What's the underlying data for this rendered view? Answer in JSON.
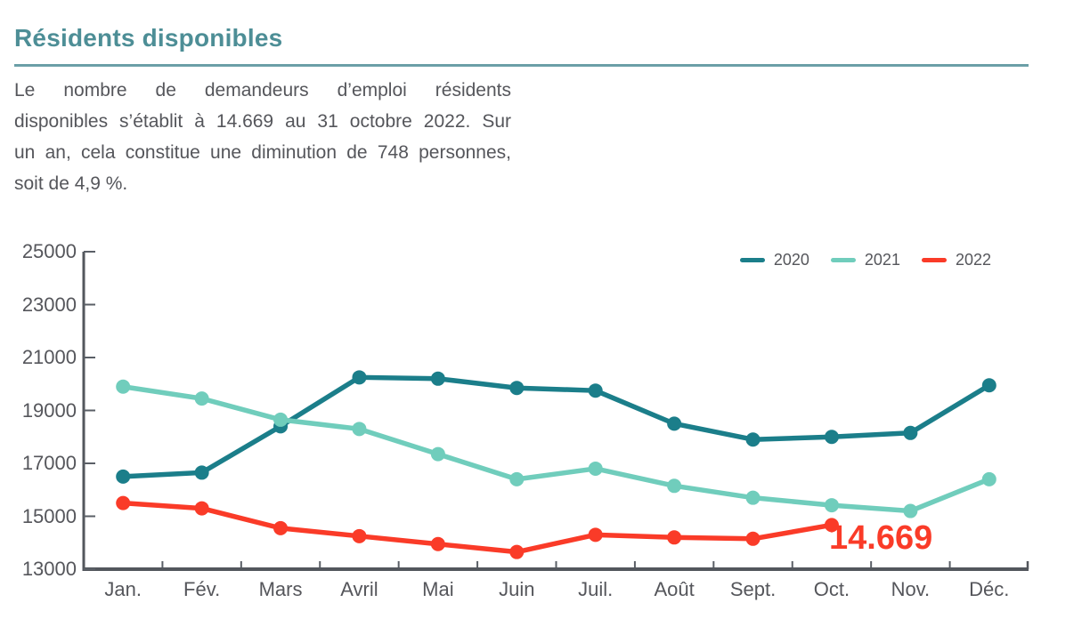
{
  "page": {
    "title": "Résidents disponibles",
    "intro_lines": [
      "Le nombre de demandeurs d’emploi résidents",
      "disponibles s’établit à 14.669 au 31 octobre 2022. Sur",
      "un an, cela constitue une diminution de 748 personnes,",
      "soit de 4,9 %."
    ]
  },
  "colors": {
    "title_teal": "#4D8E96",
    "divider_teal": "#6B9FA7",
    "text_gray": "#55565B",
    "axis_gray": "#53575D",
    "tick_gray": "#5A5F66",
    "series_2020": "#1B7E8A",
    "series_2021": "#70CDBC",
    "series_2022": "#FA3B28"
  },
  "chart_data": {
    "type": "line",
    "title": "",
    "xlabel": "",
    "ylabel": "",
    "categories": [
      "Jan.",
      "Fév.",
      "Mars",
      "Avril",
      "Mai",
      "Juin",
      "Juil.",
      "Août",
      "Sept.",
      "Oct.",
      "Nov.",
      "Déc."
    ],
    "y_ticks": [
      25000,
      23000,
      21000,
      19000,
      17000,
      15000,
      13000
    ],
    "ylim": [
      13000,
      25000
    ],
    "grid": false,
    "legend_position": "top-right",
    "series": [
      {
        "name": "2020",
        "color": "#1B7E8A",
        "values": [
          16500,
          16650,
          18400,
          20250,
          20200,
          19850,
          19750,
          18500,
          17900,
          18000,
          18150,
          19950
        ]
      },
      {
        "name": "2021",
        "color": "#70CDBC",
        "values": [
          19900,
          19450,
          18650,
          18300,
          17350,
          16400,
          16800,
          16150,
          15700,
          15417,
          15200,
          16400
        ]
      },
      {
        "name": "2022",
        "color": "#FA3B28",
        "values": [
          15500,
          15300,
          14550,
          14250,
          13950,
          13650,
          14300,
          14200,
          14150,
          14669
        ]
      }
    ],
    "annotation": {
      "text": "14.669",
      "series": "2022",
      "category": "Oct.",
      "color": "#FA3B28"
    }
  }
}
